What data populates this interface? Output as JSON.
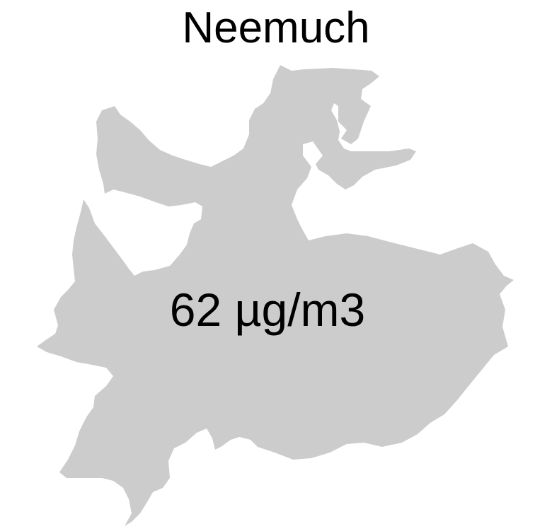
{
  "map": {
    "title": "Neemuch",
    "value_label": "62 µg/m3",
    "region_fill": "#cccccc",
    "background": "#ffffff",
    "text_color": "#000000"
  }
}
